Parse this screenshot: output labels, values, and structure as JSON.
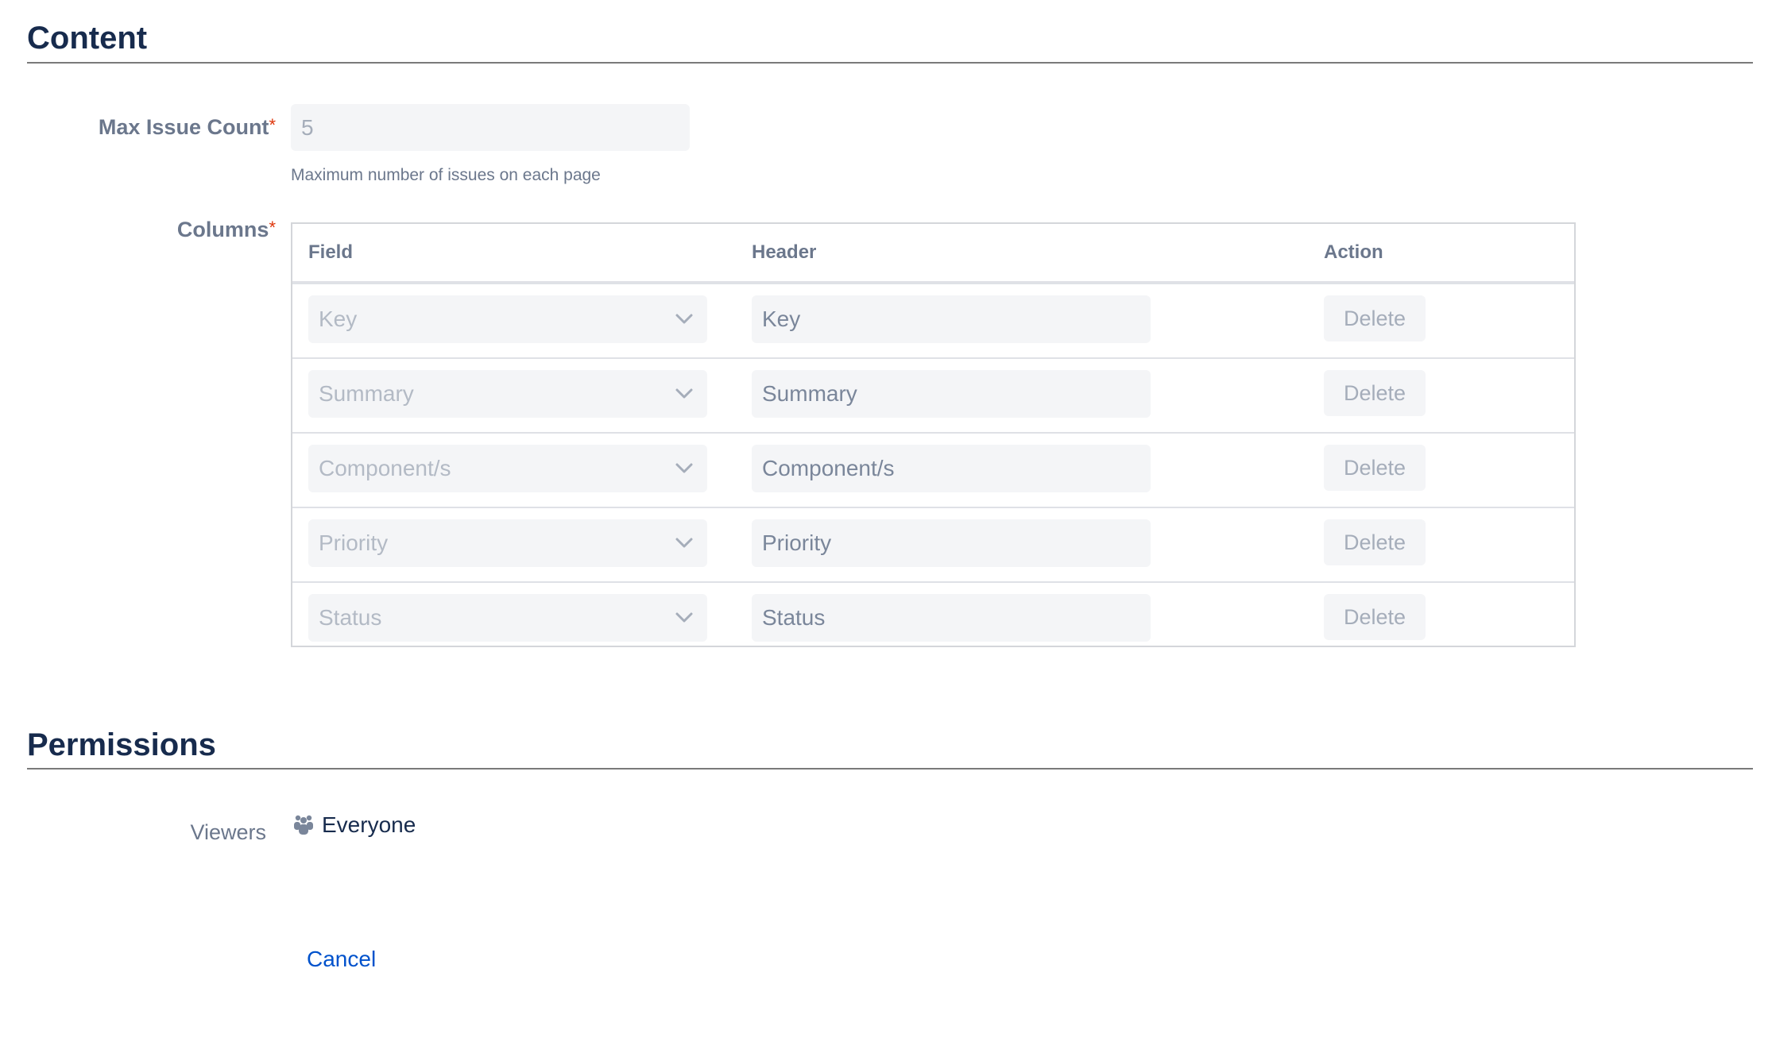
{
  "content": {
    "heading": "Content",
    "max_issue_count": {
      "label": "Max Issue Count",
      "required_mark": "*",
      "value": "5",
      "help": "Maximum number of issues on each page"
    },
    "columns": {
      "label": "Columns",
      "required_mark": "*",
      "headers": {
        "field": "Field",
        "header": "Header",
        "action": "Action"
      },
      "rows": [
        {
          "field": "Key",
          "header": "Key",
          "action": "Delete"
        },
        {
          "field": "Summary",
          "header": "Summary",
          "action": "Delete"
        },
        {
          "field": "Component/s",
          "header": "Component/s",
          "action": "Delete"
        },
        {
          "field": "Priority",
          "header": "Priority",
          "action": "Delete"
        },
        {
          "field": "Status",
          "header": "Status",
          "action": "Delete"
        }
      ]
    }
  },
  "permissions": {
    "heading": "Permissions",
    "viewers": {
      "label": "Viewers",
      "icon": "group-icon",
      "value": "Everyone"
    }
  },
  "actions": {
    "cancel": "Cancel"
  },
  "colors": {
    "heading": "#172b4d",
    "label": "#6b778c",
    "required": "#de350b",
    "link": "#0052cc",
    "input_bg": "#f4f5f7"
  }
}
